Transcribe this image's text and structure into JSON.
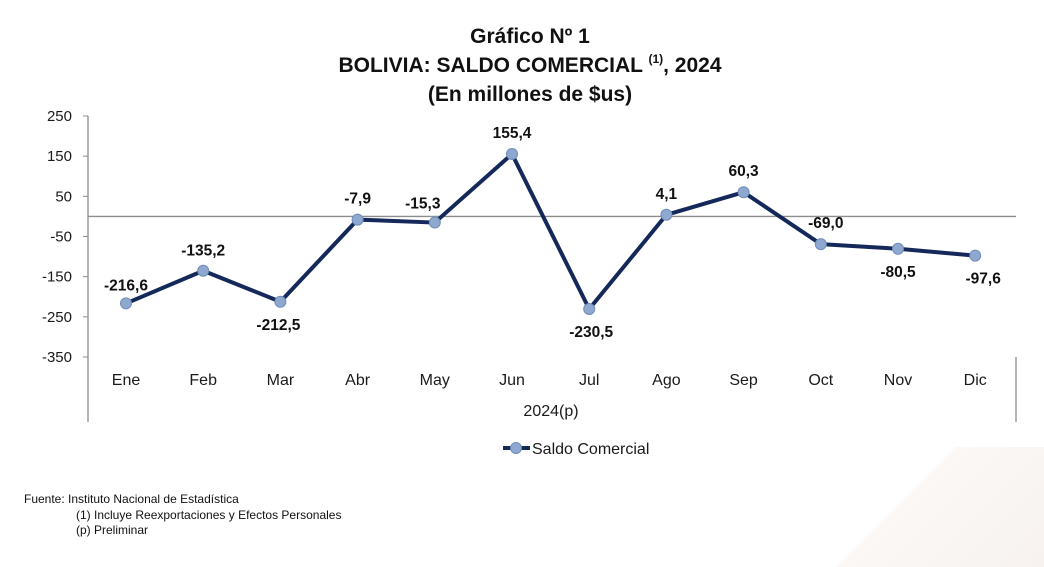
{
  "title": {
    "line1": "Gráfico Nº 1",
    "line2_main": "BOLIVIA: SALDO COMERCIAL",
    "line2_sup": "(1)",
    "line2_tail": ", 2024",
    "line3": "(En millones de $us)"
  },
  "chart_data": {
    "type": "line",
    "categories": [
      "Ene",
      "Feb",
      "Mar",
      "Abr",
      "May",
      "Jun",
      "Jul",
      "Ago",
      "Sep",
      "Oct",
      "Nov",
      "Dic"
    ],
    "series": [
      {
        "name": "Saldo Comercial",
        "values": [
          -216.6,
          -135.2,
          -212.5,
          -7.9,
          -15.3,
          155.4,
          -230.5,
          4.1,
          60.3,
          -69.0,
          -80.5,
          -97.6
        ],
        "labels": [
          "-216,6",
          "-135,2",
          "-212,5",
          "-7,9",
          "-15,3",
          "155,4",
          "-230,5",
          "4,1",
          "60,3",
          "-69,0",
          "-80,5",
          "-97,6"
        ]
      }
    ],
    "y_ticks": [
      250,
      150,
      50,
      -50,
      -150,
      -250,
      -350
    ],
    "y_tick_labels": [
      "250",
      "150",
      "50",
      "-50",
      "-150",
      "-250",
      "-350"
    ],
    "ylim": [
      -350,
      250
    ],
    "xlabel": "2024(p)",
    "ylabel": "",
    "grid": false,
    "zero_line": true,
    "legend": "bottom-center",
    "colors": {
      "line": "#14285a",
      "marker": "#8fa8cf",
      "zero_line": "#8c8c8c",
      "axis": "#8c8c8c"
    }
  },
  "footer": {
    "source": "Fuente: Instituto Nacional de Estadística",
    "note1": "(1) Incluye Reexportaciones y Efectos Personales",
    "note2": "(p) Preliminar"
  }
}
